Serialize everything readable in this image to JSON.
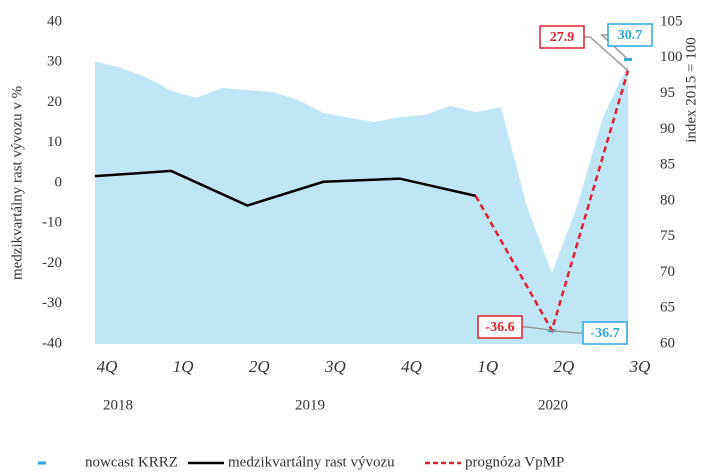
{
  "chart_data": {
    "type": "line",
    "y_label": "medzikvartálny rast vývozu v %",
    "y2_label": "index 2015 = 100",
    "categories": [
      "4Q",
      "1Q",
      "2Q",
      "3Q",
      "4Q",
      "1Q",
      "2Q",
      "3Q"
    ],
    "years": [
      "2018",
      "2019",
      "2020"
    ],
    "ylim": [
      -40,
      40
    ],
    "yticks": [
      -40,
      -30,
      -20,
      -10,
      0,
      10,
      20,
      30,
      40
    ],
    "y2lim": [
      60,
      105
    ],
    "y2ticks": [
      60,
      65,
      70,
      75,
      80,
      85,
      90,
      95,
      100,
      105
    ],
    "area": {
      "axis": "y2",
      "color": "#bfe6f7",
      "values": [
        99.5,
        98.6,
        97.3,
        95.4,
        94.4,
        95.8,
        95.5,
        95.2,
        94.1,
        92.3,
        91.6,
        91.0,
        91.7,
        92.0,
        93.3,
        92.4,
        93.1,
        79.4,
        69.9,
        79.3,
        91.6,
        99.0
      ]
    },
    "series": [
      {
        "name": "nowcast KRRZ",
        "color": "#29a8e0",
        "values": [
          null,
          null,
          null,
          null,
          null,
          null,
          -36.7,
          30.7
        ]
      },
      {
        "name": "medzikvartálny rast vývozu",
        "color": "#000000",
        "values": [
          1.7,
          3.0,
          -5.6,
          0.3,
          1.1,
          -3.2,
          null,
          null
        ]
      },
      {
        "name": "prognóza VpMP",
        "color": "#e0202a",
        "values": [
          null,
          null,
          null,
          null,
          null,
          -3.2,
          -36.6,
          27.9
        ]
      }
    ]
  }
}
